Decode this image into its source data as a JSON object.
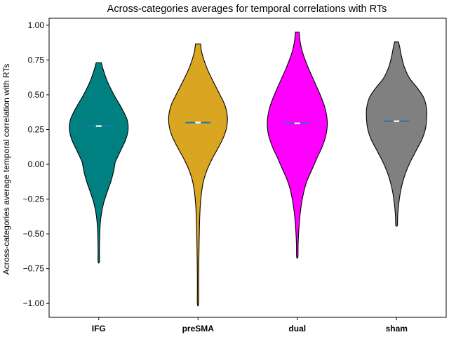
{
  "chart_data": {
    "type": "violin",
    "title": "Across-categories averages for temporal correlations with RTs",
    "xlabel": "",
    "ylabel": "Across-categories average temporal correlation with RTs",
    "ylim": [
      -1.1,
      1.05
    ],
    "yticks": [
      -1.0,
      -0.75,
      -0.5,
      -0.25,
      0.0,
      0.25,
      0.5,
      0.75,
      1.0
    ],
    "ytick_labels": [
      "−1.00",
      "−0.75",
      "−0.50",
      "−0.25",
      "0.00",
      "0.25",
      "0.50",
      "0.75",
      "1.00"
    ],
    "grid": false,
    "categories": [
      "IFG",
      "preSMA",
      "dual",
      "sham"
    ],
    "series": [
      {
        "category": "IFG",
        "color": "#008080",
        "median": 0.275,
        "min": -0.7,
        "max": 0.73,
        "profile": [
          [
            0.73,
            0.08
          ],
          [
            0.68,
            0.14
          ],
          [
            0.6,
            0.26
          ],
          [
            0.5,
            0.47
          ],
          [
            0.4,
            0.72
          ],
          [
            0.32,
            0.88
          ],
          [
            0.25,
            0.91
          ],
          [
            0.18,
            0.84
          ],
          [
            0.1,
            0.68
          ],
          [
            0.02,
            0.52
          ],
          [
            0.0,
            0.5
          ],
          [
            -0.05,
            0.46
          ],
          [
            -0.12,
            0.38
          ],
          [
            -0.2,
            0.26
          ],
          [
            -0.28,
            0.15
          ],
          [
            -0.36,
            0.08
          ],
          [
            -0.45,
            0.04
          ],
          [
            -0.55,
            0.025
          ],
          [
            -0.62,
            0.02
          ],
          [
            -0.7,
            0.02
          ]
        ]
      },
      {
        "category": "preSMA",
        "color": "#DAA520",
        "median": 0.3,
        "min": -1.0,
        "max": 0.865,
        "profile": [
          [
            0.865,
            0.08
          ],
          [
            0.8,
            0.12
          ],
          [
            0.7,
            0.26
          ],
          [
            0.6,
            0.46
          ],
          [
            0.5,
            0.68
          ],
          [
            0.42,
            0.84
          ],
          [
            0.34,
            0.91
          ],
          [
            0.27,
            0.89
          ],
          [
            0.2,
            0.8
          ],
          [
            0.12,
            0.63
          ],
          [
            0.04,
            0.44
          ],
          [
            -0.04,
            0.28
          ],
          [
            -0.12,
            0.17
          ],
          [
            -0.2,
            0.11
          ],
          [
            -0.3,
            0.07
          ],
          [
            -0.4,
            0.05
          ],
          [
            -0.55,
            0.035
          ],
          [
            -0.7,
            0.025
          ],
          [
            -0.85,
            0.02
          ],
          [
            -1.0,
            0.02
          ]
        ]
      },
      {
        "category": "dual",
        "color": "#FF00FF",
        "median": 0.295,
        "min": -0.665,
        "max": 0.95,
        "profile": [
          [
            0.95,
            0.06
          ],
          [
            0.88,
            0.09
          ],
          [
            0.8,
            0.17
          ],
          [
            0.7,
            0.33
          ],
          [
            0.6,
            0.52
          ],
          [
            0.5,
            0.71
          ],
          [
            0.42,
            0.84
          ],
          [
            0.35,
            0.91
          ],
          [
            0.28,
            0.93
          ],
          [
            0.2,
            0.88
          ],
          [
            0.12,
            0.76
          ],
          [
            0.04,
            0.6
          ],
          [
            -0.04,
            0.45
          ],
          [
            -0.12,
            0.3
          ],
          [
            -0.2,
            0.2
          ],
          [
            -0.3,
            0.12
          ],
          [
            -0.4,
            0.07
          ],
          [
            -0.5,
            0.04
          ],
          [
            -0.58,
            0.025
          ],
          [
            -0.665,
            0.02
          ]
        ]
      },
      {
        "category": "sham",
        "color": "#808080",
        "median": 0.31,
        "min": -0.44,
        "max": 0.88,
        "profile": [
          [
            0.88,
            0.06
          ],
          [
            0.84,
            0.1
          ],
          [
            0.78,
            0.15
          ],
          [
            0.7,
            0.24
          ],
          [
            0.62,
            0.4
          ],
          [
            0.55,
            0.64
          ],
          [
            0.48,
            0.84
          ],
          [
            0.4,
            0.93
          ],
          [
            0.32,
            0.93
          ],
          [
            0.25,
            0.89
          ],
          [
            0.18,
            0.79
          ],
          [
            0.1,
            0.61
          ],
          [
            0.02,
            0.43
          ],
          [
            -0.05,
            0.3
          ],
          [
            -0.12,
            0.2
          ],
          [
            -0.2,
            0.12
          ],
          [
            -0.28,
            0.07
          ],
          [
            -0.35,
            0.04
          ],
          [
            -0.4,
            0.03
          ],
          [
            -0.44,
            0.025
          ]
        ]
      }
    ]
  }
}
